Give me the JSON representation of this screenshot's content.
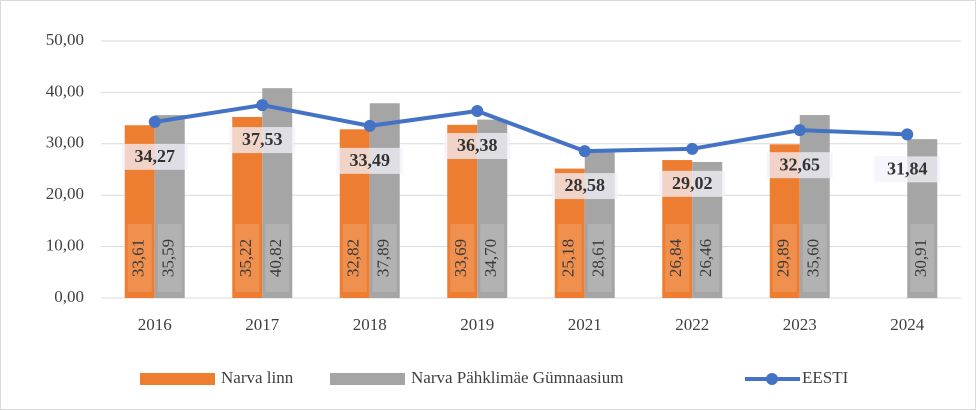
{
  "chart_data": {
    "type": "bar",
    "categories": [
      "2016",
      "2017",
      "2018",
      "2019",
      "2021",
      "2022",
      "2023",
      "2024"
    ],
    "series": [
      {
        "name": "Narva linn",
        "color": "#ed7d31",
        "type": "bar",
        "values": [
          33.61,
          35.22,
          32.82,
          33.69,
          25.18,
          26.84,
          29.89,
          null
        ],
        "value_labels": [
          "33,61",
          "35,22",
          "32,82",
          "33,69",
          "25,18",
          "26,84",
          "29,89",
          null
        ]
      },
      {
        "name": "Narva Pähklimäe Gümnaasium",
        "color": "#a5a5a5",
        "type": "bar",
        "values": [
          35.59,
          40.82,
          37.89,
          34.7,
          28.61,
          26.46,
          35.6,
          30.91
        ],
        "value_labels": [
          "35,59",
          "40,82",
          "37,89",
          "34,70",
          "28,61",
          "26,46",
          "35,60",
          "30,91"
        ]
      },
      {
        "name": "EESTI",
        "color": "#4472c4",
        "type": "line",
        "values": [
          34.27,
          37.53,
          33.49,
          36.38,
          28.58,
          29.02,
          32.65,
          31.84
        ],
        "value_labels": [
          "34,27",
          "37,53",
          "33,49",
          "36,38",
          "28,58",
          "29,02",
          "32,65",
          "31,84"
        ]
      }
    ],
    "ylim": [
      0,
      50
    ],
    "yticks": [
      {
        "value": 0,
        "label": "0,00"
      },
      {
        "value": 10,
        "label": "10,00"
      },
      {
        "value": 20,
        "label": "20,00"
      },
      {
        "value": 30,
        "label": "30,00"
      },
      {
        "value": 40,
        "label": "40,00"
      },
      {
        "value": 50,
        "label": "50,00"
      }
    ],
    "grid": true,
    "legend": "bottom"
  }
}
